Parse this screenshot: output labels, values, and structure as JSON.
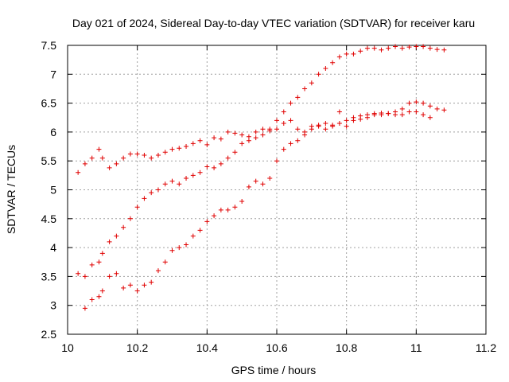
{
  "chart_data": {
    "type": "scatter",
    "title": "Day 021 of 2024, Sidereal Day-to-day VTEC variation (SDTVAR) for receiver karu",
    "xlabel": "GPS time / hours",
    "ylabel": "SDTVAR / TECUs",
    "xlim": [
      10,
      11.2
    ],
    "ylim": [
      2.5,
      7.5
    ],
    "xticks": [
      "10",
      "10.2",
      "10.4",
      "10.6",
      "10.8",
      "11",
      "11.2"
    ],
    "yticks": [
      "2.5",
      "3",
      "3.5",
      "4",
      "4.5",
      "5",
      "5.5",
      "6",
      "6.5",
      "7",
      "7.5"
    ],
    "grid": true,
    "marker": "+",
    "marker_color": "#e00000",
    "series": [
      {
        "x": [
          10.03,
          10.05,
          10.07,
          10.09,
          10.1,
          10.12,
          10.14,
          10.16,
          10.18,
          10.2,
          10.22,
          10.24,
          10.26,
          10.28,
          10.3,
          10.32,
          10.34,
          10.36,
          10.38,
          10.4,
          10.42,
          10.44,
          10.46,
          10.48,
          10.5,
          10.52,
          10.54,
          10.56,
          10.58,
          10.6,
          10.62,
          10.64,
          10.66,
          10.68,
          10.7,
          10.72,
          10.74,
          10.76,
          10.78,
          10.8,
          10.82,
          10.84,
          10.86,
          10.88,
          10.9,
          10.92,
          10.94,
          10.96,
          10.98,
          11,
          11.02,
          11.04
        ],
        "y": [
          5.3,
          5.45,
          5.55,
          5.7,
          5.55,
          5.38,
          5.45,
          5.55,
          5.62,
          5.62,
          5.6,
          5.55,
          5.6,
          5.65,
          5.7,
          5.72,
          5.75,
          5.8,
          5.85,
          5.78,
          5.9,
          5.88,
          6.0,
          5.98,
          5.95,
          5.92,
          6.0,
          6.05,
          6.02,
          6.05,
          6.15,
          6.2,
          6.05,
          6.0,
          6.1,
          6.12,
          6.15,
          6.12,
          6.15,
          6.2,
          6.25,
          6.28,
          6.3,
          6.32,
          6.33,
          6.32,
          6.3,
          6.3,
          6.35,
          6.35,
          6.3,
          6.25
        ]
      },
      {
        "x": [
          10.03,
          10.05,
          10.07,
          10.09,
          10.1,
          10.12,
          10.14,
          10.16,
          10.18,
          10.2,
          10.22,
          10.24,
          10.26,
          10.28,
          10.3,
          10.32,
          10.34,
          10.36,
          10.38,
          10.4,
          10.42,
          10.44,
          10.46,
          10.48,
          10.5,
          10.52,
          10.54,
          10.56,
          10.58,
          10.6,
          10.62,
          10.64,
          10.66,
          10.68,
          10.7,
          10.72,
          10.74,
          10.76,
          10.78,
          10.8,
          10.82,
          10.84,
          10.86,
          10.88,
          10.9,
          10.92,
          10.94,
          10.96,
          10.98,
          11,
          11.02,
          11.04,
          11.06,
          11.08
        ],
        "y": [
          3.55,
          3.5,
          3.7,
          3.75,
          3.9,
          4.1,
          4.2,
          4.35,
          4.5,
          4.7,
          4.85,
          4.95,
          5.0,
          5.1,
          5.15,
          5.1,
          5.2,
          5.25,
          5.3,
          5.4,
          5.38,
          5.45,
          5.55,
          5.65,
          5.8,
          5.85,
          5.9,
          5.95,
          6.05,
          6.2,
          6.35,
          6.5,
          6.6,
          6.75,
          6.85,
          7.0,
          7.1,
          7.2,
          7.3,
          7.35,
          7.35,
          7.4,
          7.45,
          7.45,
          7.42,
          7.45,
          7.48,
          7.45,
          7.47,
          7.48,
          7.48,
          7.45,
          7.43,
          7.42
        ]
      },
      {
        "x": [
          10.05,
          10.07,
          10.09,
          10.1,
          10.12,
          10.14,
          10.16,
          10.18,
          10.2,
          10.22,
          10.24,
          10.26,
          10.28,
          10.3,
          10.32,
          10.34,
          10.36,
          10.38,
          10.4,
          10.42,
          10.44,
          10.46,
          10.48,
          10.5,
          10.52,
          10.54,
          10.56,
          10.58,
          10.6,
          10.62,
          10.64,
          10.66,
          10.68,
          10.7,
          10.72,
          10.74,
          10.76,
          10.78,
          10.8,
          10.82,
          10.84,
          10.86,
          10.88,
          10.9,
          10.92,
          10.94,
          10.96,
          10.98,
          11,
          11.02,
          11.04,
          11.06,
          11.08
        ],
        "y": [
          2.95,
          3.1,
          3.15,
          3.25,
          3.5,
          3.55,
          3.3,
          3.35,
          3.25,
          3.35,
          3.4,
          3.6,
          3.75,
          3.95,
          4.0,
          4.05,
          4.2,
          4.3,
          4.45,
          4.55,
          4.65,
          4.65,
          4.7,
          4.8,
          5.05,
          5.15,
          5.1,
          5.2,
          5.5,
          5.7,
          5.8,
          5.85,
          5.95,
          6.05,
          6.1,
          6.05,
          6.1,
          6.35,
          6.1,
          6.2,
          6.22,
          6.25,
          6.3,
          6.3,
          6.32,
          6.35,
          6.4,
          6.5,
          6.52,
          6.5,
          6.45,
          6.4,
          6.38
        ]
      }
    ]
  }
}
